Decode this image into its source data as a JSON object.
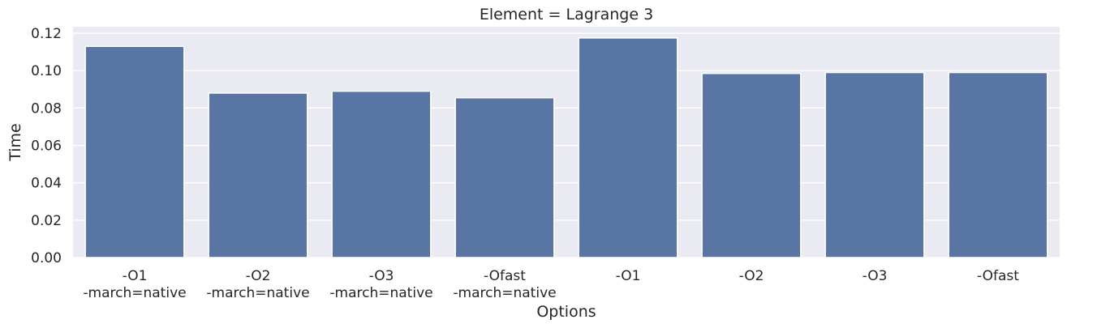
{
  "chart_data": {
    "type": "bar",
    "title": "Element = Lagrange 3",
    "xlabel": "Options",
    "ylabel": "Time",
    "categories": [
      [
        "-O1",
        "-march=native"
      ],
      [
        "-O2",
        "-march=native"
      ],
      [
        "-O3",
        "-march=native"
      ],
      [
        "-Ofast",
        "-march=native"
      ],
      [
        "-O1"
      ],
      [
        "-O2"
      ],
      [
        "-O3"
      ],
      [
        "-Ofast"
      ]
    ],
    "values": [
      0.113,
      0.088,
      0.089,
      0.0855,
      0.1175,
      0.0985,
      0.099,
      0.099
    ],
    "ylim": [
      0,
      0.1235
    ],
    "yticks": [
      0.0,
      0.02,
      0.04,
      0.06,
      0.08,
      0.1,
      0.12
    ],
    "ytick_labels": [
      "0.00",
      "0.02",
      "0.04",
      "0.06",
      "0.08",
      "0.10",
      "0.12"
    ],
    "grid": true,
    "colors": {
      "bar": "#5975a4",
      "plot_background": "#eaeaf2",
      "grid": "#ffffff",
      "text": "#262626"
    }
  }
}
